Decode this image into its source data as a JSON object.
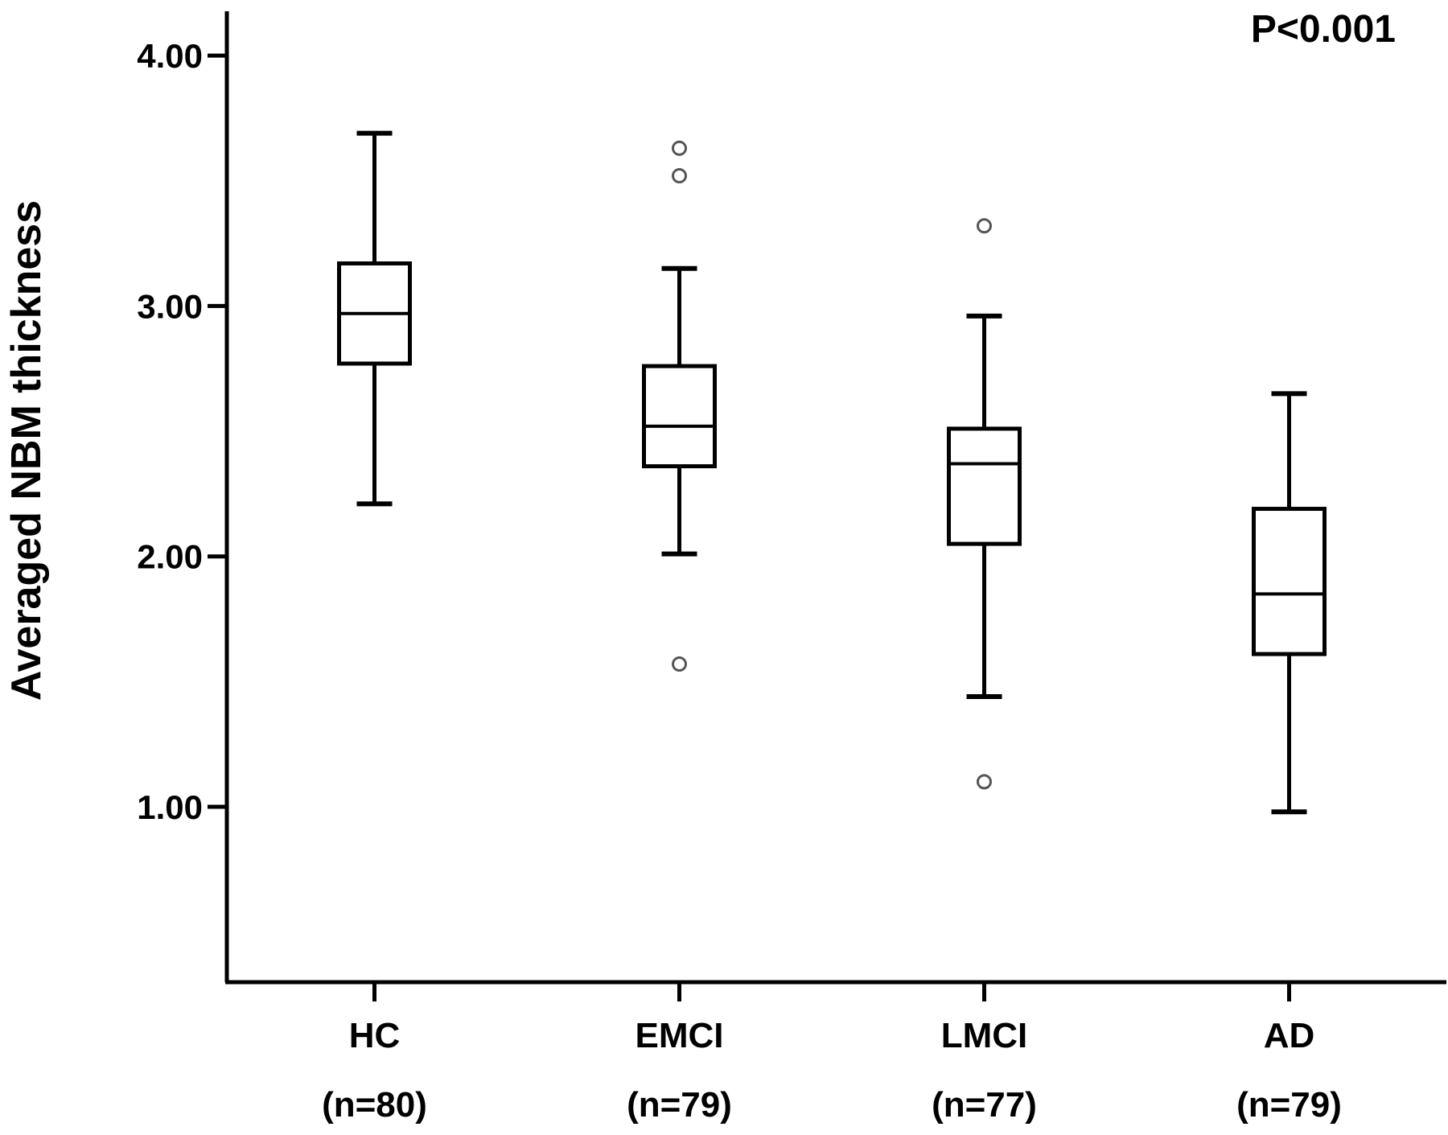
{
  "chart_data": {
    "type": "box",
    "ylabel": "Averaged NBM thickness",
    "annotation": "P<0.001",
    "ylim": [
      0.35,
      4.15
    ],
    "yticks": [
      "1.00",
      "2.00",
      "3.00",
      "4.00"
    ],
    "ytick_values": [
      1,
      2,
      3,
      4
    ],
    "grid": false,
    "groups": [
      {
        "label": "HC",
        "n": "(n=80)",
        "min": 2.21,
        "q1": 2.77,
        "median": 2.97,
        "q3": 3.17,
        "max": 3.69,
        "outliers": []
      },
      {
        "label": "EMCI",
        "n": "(n=79)",
        "min": 2.01,
        "q1": 2.36,
        "median": 2.52,
        "q3": 2.76,
        "max": 3.15,
        "outliers": [
          3.63,
          3.52,
          1.57
        ]
      },
      {
        "label": "LMCI",
        "n": "(n=77)",
        "min": 1.44,
        "q1": 2.05,
        "median": 2.37,
        "q3": 2.51,
        "max": 2.96,
        "outliers": [
          3.32,
          1.1
        ]
      },
      {
        "label": "AD",
        "n": "(n=79)",
        "min": 0.98,
        "q1": 1.61,
        "median": 1.85,
        "q3": 2.19,
        "max": 2.65,
        "outliers": []
      }
    ]
  }
}
